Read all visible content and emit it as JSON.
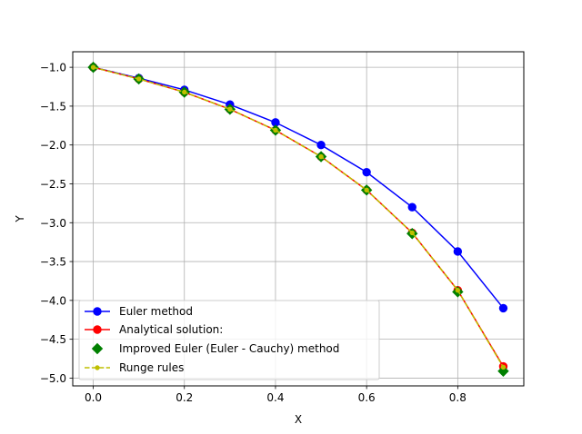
{
  "chart_data": {
    "type": "line",
    "title": "",
    "xlabel": "X",
    "ylabel": "Y",
    "xlim": [
      -0.045,
      0.945
    ],
    "ylim": [
      -5.1,
      -0.8
    ],
    "xticks": [
      0.0,
      0.2,
      0.4,
      0.6,
      0.8
    ],
    "xtick_labels": [
      "0.0",
      "0.2",
      "0.4",
      "0.6",
      "0.8"
    ],
    "yticks": [
      -1.0,
      -1.5,
      -2.0,
      -2.5,
      -3.0,
      -3.5,
      -4.0,
      -4.5,
      -5.0
    ],
    "ytick_labels": [
      "−1.0",
      "−1.5",
      "−2.0",
      "−2.5",
      "−3.0",
      "−3.5",
      "−4.0",
      "−4.5",
      "−5.0"
    ],
    "grid": true,
    "legend_position": "lower-left",
    "x": [
      0.0,
      0.1,
      0.2,
      0.3,
      0.4,
      0.5,
      0.6,
      0.7,
      0.8,
      0.9
    ],
    "series": [
      {
        "name": "Euler method",
        "color": "#0000ff",
        "marker": "circle",
        "line": "solid",
        "values": [
          -1.0,
          -1.14,
          -1.29,
          -1.48,
          -1.71,
          -2.0,
          -2.35,
          -2.8,
          -3.37,
          -4.1
        ]
      },
      {
        "name": "Analytical solution:",
        "color": "#ff0000",
        "marker": "circle",
        "line": "solid",
        "values": [
          -1.0,
          -1.15,
          -1.32,
          -1.54,
          -1.81,
          -2.15,
          -2.58,
          -3.13,
          -3.87,
          -4.85
        ]
      },
      {
        "name": "Improved Euler (Euler - Cauchy) method",
        "color": "#008000",
        "marker": "diamond",
        "line": "none",
        "values": [
          -1.0,
          -1.15,
          -1.32,
          -1.54,
          -1.81,
          -2.15,
          -2.58,
          -3.14,
          -3.89,
          -4.91
        ]
      },
      {
        "name": "Runge rules",
        "color": "#bfbf00",
        "marker": "small-circle",
        "line": "dashed",
        "values": [
          -1.0,
          -1.15,
          -1.32,
          -1.54,
          -1.81,
          -2.15,
          -2.58,
          -3.13,
          -3.87,
          -4.86
        ]
      }
    ]
  }
}
